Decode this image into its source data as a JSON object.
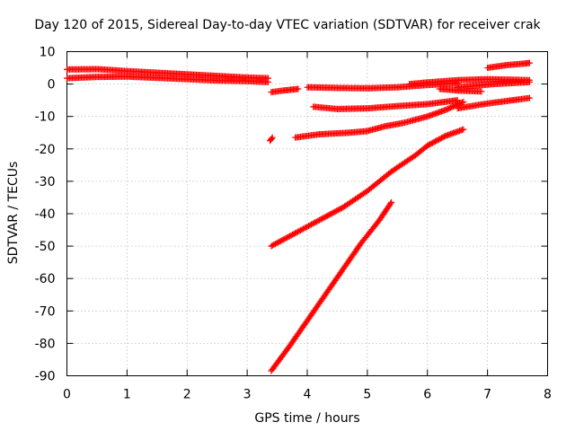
{
  "chart_data": {
    "type": "scatter",
    "title": "Day 120 of 2015, Sidereal Day-to-day VTEC variation (SDTVAR) for receiver crak",
    "xlabel": "GPS time / hours",
    "ylabel": "SDTVAR / TECUs",
    "xlim": [
      0,
      8
    ],
    "ylim": [
      -90,
      10
    ],
    "xticks": [
      0,
      1,
      2,
      3,
      4,
      5,
      6,
      7,
      8
    ],
    "yticks": [
      10,
      0,
      -10,
      -20,
      -30,
      -40,
      -50,
      -60,
      -70,
      -80,
      -90
    ],
    "grid": true,
    "color": "#ff0000",
    "series": [
      {
        "x": [
          0.0,
          0.5,
          1.0,
          1.5,
          2.0,
          2.5,
          3.0,
          3.35
        ],
        "y": [
          4.5,
          4.6,
          4.0,
          3.5,
          3.0,
          2.5,
          2.0,
          1.8
        ]
      },
      {
        "x": [
          0.0,
          0.5,
          1.0,
          1.5,
          2.0,
          2.5,
          3.0,
          3.35
        ],
        "y": [
          1.8,
          2.2,
          2.3,
          1.9,
          1.5,
          1.1,
          0.9,
          0.6
        ]
      },
      {
        "x": [
          3.4,
          3.6,
          3.85
        ],
        "y": [
          -2.5,
          -2.0,
          -1.5
        ]
      },
      {
        "x": [
          4.1,
          4.5,
          5.0,
          5.5,
          6.0,
          6.5
        ],
        "y": [
          -7.0,
          -7.7,
          -7.5,
          -6.8,
          -6.2,
          -5.0
        ]
      },
      {
        "x": [
          4.0,
          4.5,
          5.0,
          5.5,
          6.0,
          6.5
        ],
        "y": [
          -1.0,
          -1.2,
          -1.3,
          -1.0,
          -0.3,
          0.2
        ]
      },
      {
        "x": [
          5.7,
          6.0,
          6.5,
          7.0,
          7.5,
          7.7
        ],
        "y": [
          0.0,
          0.5,
          1.2,
          1.5,
          1.3,
          1.2
        ]
      },
      {
        "x": [
          6.5,
          6.8,
          7.1,
          7.4,
          7.7
        ],
        "y": [
          -1.0,
          -0.5,
          0.0,
          0.3,
          0.6
        ]
      },
      {
        "x": [
          6.2,
          6.5,
          6.9
        ],
        "y": [
          -1.5,
          -2.0,
          -2.3
        ]
      },
      {
        "x": [
          7.0,
          7.3,
          7.6,
          7.7
        ],
        "y": [
          5.0,
          5.8,
          6.3,
          6.5
        ]
      },
      {
        "x": [
          6.5,
          7.0,
          7.5,
          7.7
        ],
        "y": [
          -7.5,
          -6.0,
          -4.8,
          -4.3
        ]
      },
      {
        "x": [
          3.8,
          4.2,
          4.7,
          5.0,
          5.3,
          5.6,
          6.0,
          6.3,
          6.6
        ],
        "y": [
          -16.5,
          -15.5,
          -15.0,
          -14.5,
          -13.0,
          -12.0,
          -10.0,
          -8.0,
          -5.5
        ]
      },
      {
        "x": [
          3.38,
          3.42
        ],
        "y": [
          -17.5,
          -16.5
        ]
      },
      {
        "x": [
          3.4,
          3.8,
          4.2,
          4.6,
          5.0,
          5.4,
          5.8,
          6.0,
          6.3,
          6.6
        ],
        "y": [
          -50.0,
          -46.0,
          -42.0,
          -38.0,
          -33.0,
          -27.0,
          -22.0,
          -19.0,
          -16.0,
          -14.0
        ]
      },
      {
        "x": [
          3.4,
          3.7,
          4.0,
          4.3,
          4.6,
          4.9,
          5.2,
          5.4
        ],
        "y": [
          -88.5,
          -81.0,
          -73.0,
          -65.0,
          -57.0,
          -49.0,
          -42.0,
          -36.5
        ]
      }
    ]
  }
}
